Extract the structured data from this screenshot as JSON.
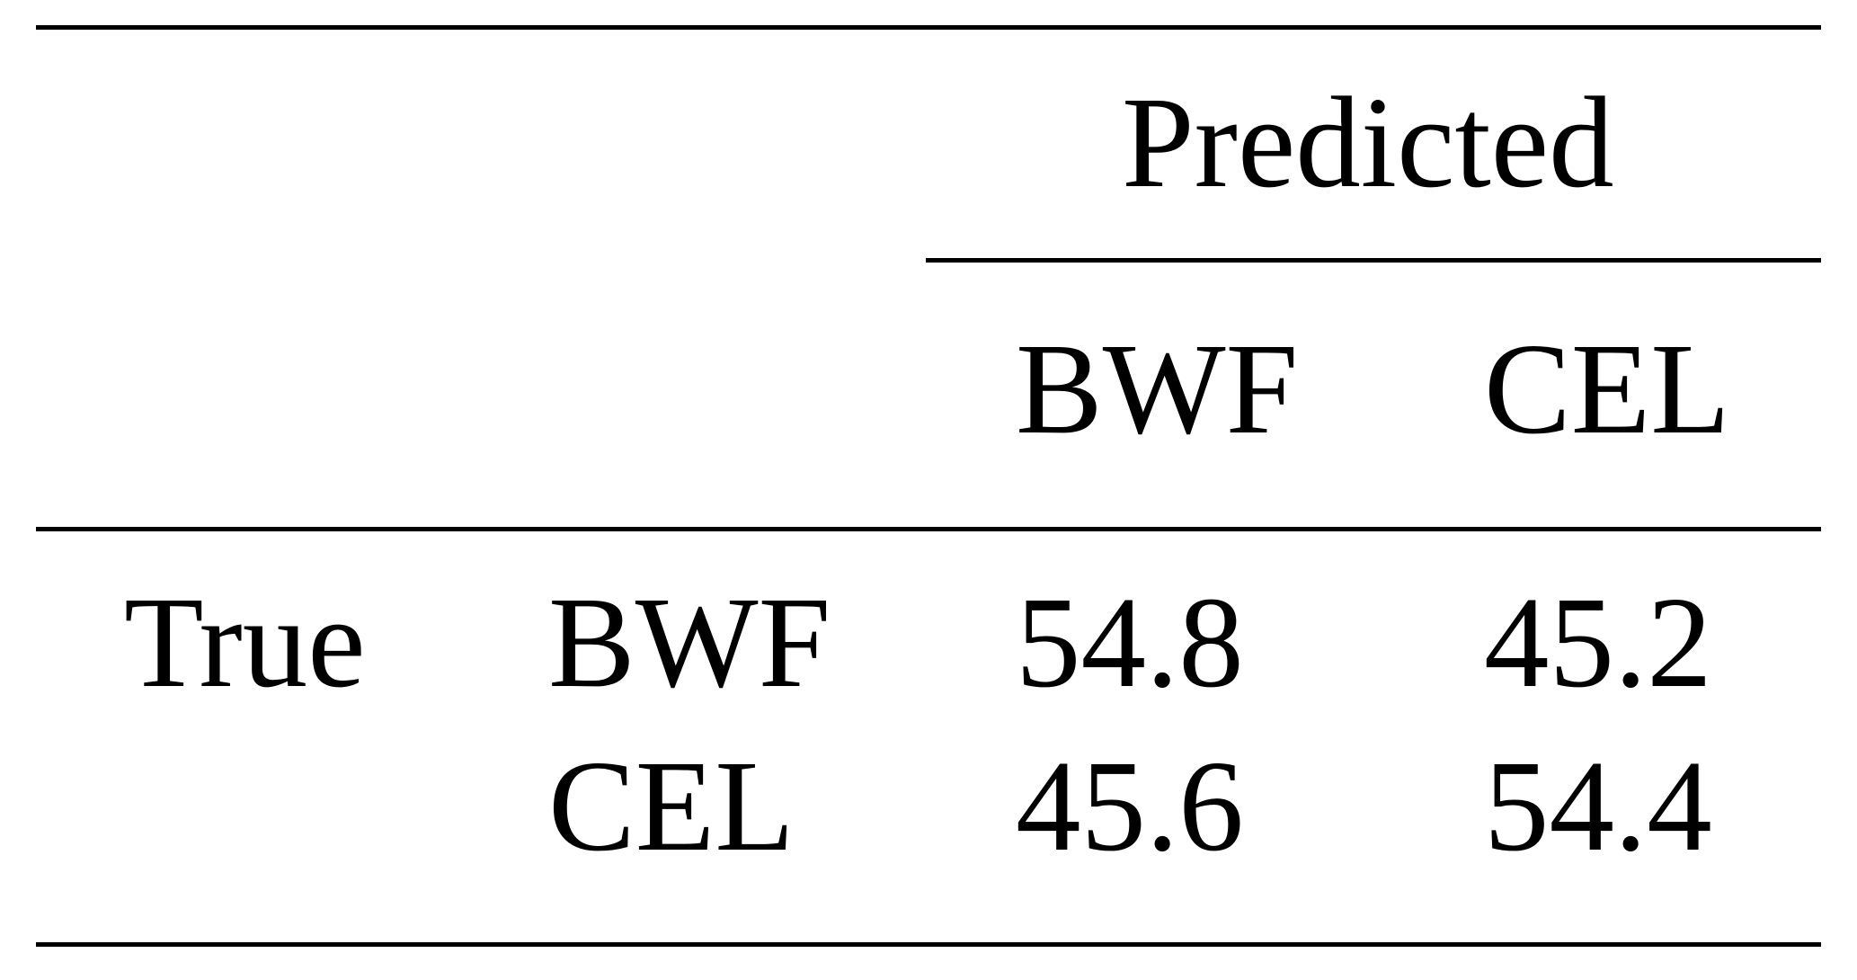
{
  "table": {
    "header": {
      "group_label": "Predicted",
      "columns": [
        "BWF",
        "CEL"
      ]
    },
    "row_group_label": "True",
    "rows": [
      {
        "label": "BWF",
        "values": [
          "54.8",
          "45.2"
        ]
      },
      {
        "label": "CEL",
        "values": [
          "45.6",
          "54.4"
        ]
      }
    ]
  }
}
